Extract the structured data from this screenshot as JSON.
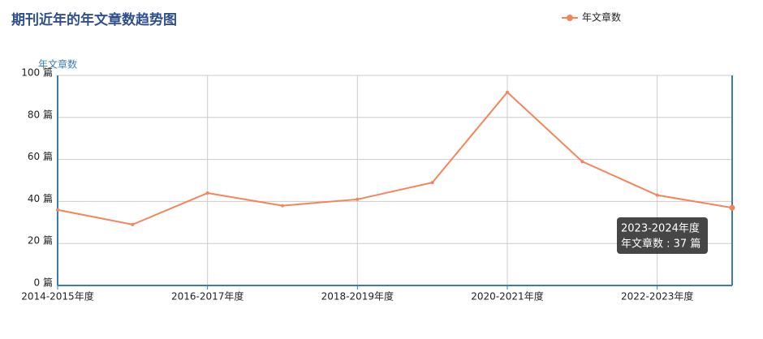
{
  "chart_data": {
    "type": "line",
    "title": "期刊近年的年文章数趋势图",
    "y_axis_label": "年文章数",
    "categories": [
      "2014-2015年度",
      null,
      "2016-2017年度",
      null,
      "2018-2019年度",
      null,
      "2020-2021年度",
      null,
      "2022-2023年度",
      null
    ],
    "series": [
      {
        "name": "年文章数",
        "color": "#f5845a",
        "values": [
          36,
          29,
          44,
          38,
          41,
          49,
          92,
          59,
          43,
          37
        ]
      }
    ],
    "ylim": [
      0,
      100
    ],
    "yticks": [
      {
        "value": 0,
        "label": "0 篇"
      },
      {
        "value": 20,
        "label": "20 篇"
      },
      {
        "value": 40,
        "label": "40 篇"
      },
      {
        "value": 60,
        "label": "60 篇"
      },
      {
        "value": 80,
        "label": "80 篇"
      },
      {
        "value": 100,
        "label": "100 篇"
      }
    ],
    "grid": true,
    "legend": "top-right",
    "tooltip": {
      "title": "2023-2024年度",
      "text": "年文章数 : 37 篇"
    }
  }
}
